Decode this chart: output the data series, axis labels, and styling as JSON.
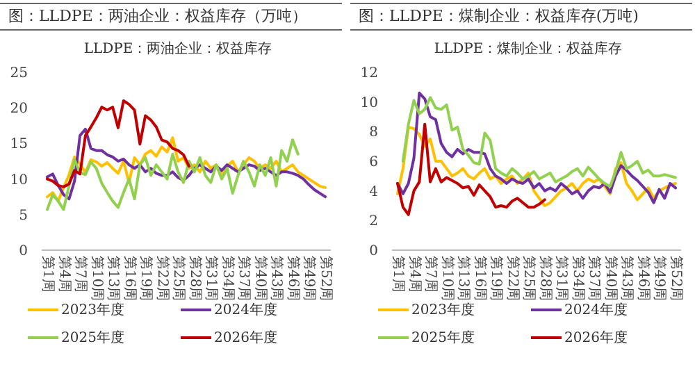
{
  "chart_data": [
    {
      "type": "line",
      "title": "图：LLDPE：两油企业：权益库存（万吨）",
      "subtitle": "LLDPE：两油企业：权益库存",
      "categories": [
        "第1周",
        null,
        null,
        "第4周",
        null,
        null,
        "第7周",
        null,
        null,
        "第10周",
        null,
        null,
        "第13周",
        null,
        null,
        "第16周",
        null,
        null,
        "第19周",
        null,
        null,
        "第22周",
        null,
        null,
        "第25周",
        null,
        null,
        "第28周",
        null,
        null,
        "第31周",
        null,
        null,
        "第34周",
        null,
        null,
        "第37周",
        null,
        null,
        "第40周",
        null,
        null,
        "第43周",
        null,
        null,
        "第46周",
        null,
        null,
        "第49周",
        null,
        null,
        "第52周"
      ],
      "ylim": [
        0,
        25
      ],
      "yticks": [
        0,
        5,
        10,
        15,
        20,
        25
      ],
      "legend": "bottom",
      "series": [
        {
          "name": "2023年度",
          "color": "#ffc000",
          "values": [
            7.5,
            8.1,
            6.9,
            8.8,
            10.6,
            13.1,
            12.1,
            10.9,
            12.7,
            12.4,
            11.8,
            12.3,
            11.5,
            10.8,
            12.5,
            9.5,
            13.0,
            12.0,
            13.5,
            14.0,
            13.2,
            14.5,
            13.8,
            15.8,
            12.5,
            13.0,
            11.5,
            12.0,
            11.0,
            12.5,
            11.5,
            12.0,
            10.5,
            11.8,
            12.5,
            11.0,
            12.0,
            13.0,
            12.5,
            11.5,
            12.0,
            11.5,
            12.5,
            11.0,
            11.5,
            12.0,
            11.0,
            10.5,
            10.0,
            9.5,
            9.0,
            8.8
          ]
        },
        {
          "name": "2024年度",
          "color": "#7030a0",
          "values": [
            10.3,
            10.7,
            9.1,
            7.8,
            7.2,
            9.7,
            16.1,
            17.0,
            14.3,
            14.0,
            14.0,
            13.4,
            13.1,
            12.5,
            12.8,
            12.0,
            11.5,
            12.0,
            11.0,
            11.5,
            10.8,
            10.5,
            10.5,
            11.0,
            10.2,
            9.8,
            10.5,
            11.5,
            12.0,
            11.5,
            11.0,
            11.8,
            11.2,
            12.0,
            11.5,
            11.0,
            11.5,
            12.0,
            11.8,
            11.2,
            11.5,
            11.0,
            10.5,
            11.0,
            11.0,
            10.8,
            10.5,
            10.0,
            9.2,
            8.5,
            8.0,
            7.5
          ]
        },
        {
          "name": "2025年度",
          "color": "#92d050",
          "values": [
            5.7,
            7.8,
            6.9,
            5.7,
            9.1,
            12.7,
            10.9,
            10.6,
            12.4,
            11.5,
            9.4,
            8.1,
            6.9,
            6.0,
            8.1,
            10.0,
            7.2,
            12.0,
            13.0,
            10.5,
            12.0,
            11.0,
            10.0,
            13.5,
            11.0,
            9.5,
            12.5,
            11.0,
            13.0,
            10.5,
            9.5,
            12.0,
            10.0,
            11.5,
            8.0,
            10.5,
            12.5,
            11.0,
            9.0,
            12.0,
            10.5,
            13.0,
            9.0,
            14.0,
            12.5,
            15.5,
            13.5,
            null,
            null,
            null,
            null,
            null
          ]
        },
        {
          "name": "2026年度",
          "color": "#c00000",
          "values": [
            10.0,
            9.7,
            9.1,
            8.9,
            9.3,
            11.2,
            10.7,
            16.1,
            17.3,
            18.6,
            20.1,
            19.7,
            20.1,
            17.2,
            21.0,
            20.5,
            19.7,
            14.9,
            18.9,
            18.3,
            17.3,
            15.5,
            15.2,
            14.3,
            14.0,
            13.4,
            11.8,
            null,
            null,
            null,
            null,
            null,
            null,
            null,
            null,
            null,
            null,
            null,
            null,
            null,
            null,
            null,
            null,
            null,
            null,
            null,
            null,
            null,
            null,
            null,
            null,
            null
          ]
        }
      ]
    },
    {
      "type": "line",
      "title": "图：LLDPE：煤制企业：权益库存(万吨)",
      "subtitle": "LLDPE：煤制企业：权益库存",
      "categories": [
        "第1周",
        null,
        null,
        "第4周",
        null,
        null,
        "第7周",
        null,
        null,
        "第10周",
        null,
        null,
        "第13周",
        null,
        null,
        "第16周",
        null,
        null,
        "第19周",
        null,
        null,
        "第22周",
        null,
        null,
        "第25周",
        null,
        null,
        "第28周",
        null,
        null,
        "第31周",
        null,
        null,
        "第34周",
        null,
        null,
        "第37周",
        null,
        null,
        "第40周",
        null,
        null,
        "第43周",
        null,
        null,
        "第46周",
        null,
        null,
        "第49周",
        null,
        null,
        "第52周"
      ],
      "ylim": [
        0,
        12
      ],
      "yticks": [
        0,
        2,
        4,
        6,
        8,
        10,
        12
      ],
      "legend": "bottom",
      "series": [
        {
          "name": "2023年度",
          "color": "#ffc000",
          "values": [
            3.8,
            5.5,
            8.3,
            8.2,
            7.8,
            7.0,
            7.5,
            6.0,
            6.0,
            5.5,
            5.0,
            5.2,
            5.5,
            5.0,
            4.8,
            5.2,
            5.5,
            4.8,
            5.0,
            4.5,
            4.8,
            5.0,
            4.5,
            4.8,
            5.2,
            4.0,
            3.5,
            3.0,
            3.2,
            3.6,
            4.0,
            4.2,
            4.5,
            4.0,
            4.5,
            4.8,
            4.6,
            4.8,
            4.3,
            3.8,
            5.5,
            5.9,
            4.5,
            4.0,
            3.4,
            3.8,
            4.2,
            3.5,
            4.0,
            4.2,
            4.4,
            4.5
          ]
        },
        {
          "name": "2024年度",
          "color": "#7030a0",
          "values": [
            4.5,
            3.8,
            4.5,
            6.2,
            10.6,
            10.2,
            9.0,
            8.8,
            7.2,
            6.6,
            6.3,
            6.8,
            6.5,
            6.8,
            6.6,
            6.6,
            6.5,
            5.5,
            5.0,
            4.8,
            4.5,
            4.8,
            4.6,
            4.5,
            4.8,
            4.2,
            4.5,
            4.0,
            4.2,
            4.0,
            4.5,
            4.2,
            3.8,
            4.0,
            3.5,
            4.0,
            4.3,
            4.2,
            4.5,
            3.9,
            5.0,
            5.7,
            5.4,
            5.0,
            4.7,
            4.3,
            3.9,
            3.2,
            4.1,
            3.5,
            4.5,
            4.2
          ]
        },
        {
          "name": "2025年度",
          "color": "#92d050",
          "values": [
            null,
            6.0,
            8.5,
            10.1,
            9.2,
            9.5,
            10.3,
            9.6,
            9.5,
            9.8,
            8.1,
            8.3,
            6.8,
            6.4,
            5.9,
            5.8,
            7.9,
            7.4,
            5.5,
            5.2,
            5.0,
            5.5,
            5.2,
            4.8,
            5.0,
            5.3,
            4.8,
            5.0,
            5.2,
            4.6,
            4.8,
            5.0,
            5.3,
            5.5,
            5.0,
            5.6,
            5.2,
            4.8,
            4.5,
            4.3,
            5.3,
            6.6,
            5.5,
            5.7,
            6.0,
            5.2,
            5.4,
            5.0,
            5.0,
            5.1,
            5.0,
            4.9
          ]
        },
        {
          "name": "2026年度",
          "color": "#c00000",
          "values": [
            4.5,
            2.9,
            2.4,
            4.0,
            4.6,
            8.5,
            4.6,
            5.5,
            4.6,
            4.9,
            4.7,
            4.5,
            4.2,
            4.3,
            3.7,
            4.4,
            4.0,
            3.6,
            2.9,
            3.0,
            2.9,
            3.3,
            3.5,
            3.2,
            2.9,
            2.9,
            3.1,
            3.4,
            null,
            null,
            null,
            null,
            null,
            null,
            null,
            null,
            null,
            null,
            null,
            null,
            null,
            null,
            null,
            null,
            null,
            null,
            null,
            null,
            null,
            null,
            null,
            null
          ]
        }
      ]
    }
  ]
}
